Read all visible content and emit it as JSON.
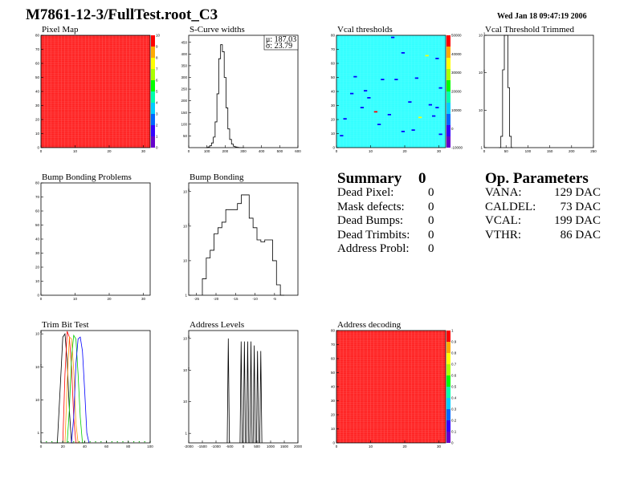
{
  "canvas_title": "M7861-12-3/FullTest.root_C3",
  "datestamp": "Wed Jan 18 09:47:19 2006",
  "summary": {
    "title": "Summary",
    "total": "0",
    "rows": [
      {
        "label": "Dead Pixel:",
        "value": "0"
      },
      {
        "label": "Mask defects:",
        "value": "0"
      },
      {
        "label": "Dead Bumps:",
        "value": "0"
      },
      {
        "label": "Dead Trimbits:",
        "value": "0"
      },
      {
        "label": "Address Probl:",
        "value": "0"
      }
    ]
  },
  "op_parameters": {
    "title": "Op. Parameters",
    "rows": [
      {
        "label": "VANA:",
        "value": "129 DAC"
      },
      {
        "label": "CALDEL:",
        "value": "73 DAC"
      },
      {
        "label": "VCAL:",
        "value": "199 DAC"
      },
      {
        "label": "VTHR:",
        "value": "86 DAC"
      }
    ]
  },
  "colors": {
    "map_fill": "#ff2020",
    "vcal_fill": "#33ffff",
    "palette": [
      "#6600cc",
      "#3300ff",
      "#0066ff",
      "#00ccff",
      "#00ffaa",
      "#00ff00",
      "#aaff00",
      "#ffff00",
      "#ffaa00",
      "#ff0000"
    ],
    "trim_lines": [
      "#000000",
      "#ff0000",
      "#ff9900",
      "#00cc00",
      "#0000ff"
    ]
  },
  "chart_data": [
    {
      "id": "pixel-map",
      "type": "heatmap",
      "title": "Pixel Map",
      "xlim": [
        0,
        32
      ],
      "ylim": [
        0,
        80
      ],
      "xticks": [
        0,
        10,
        20,
        30
      ],
      "yticks": [
        0,
        10,
        20,
        30,
        40,
        50,
        60,
        70,
        80
      ],
      "zticks": [
        0,
        1,
        2,
        3,
        4,
        5,
        6,
        7,
        8,
        9,
        10
      ],
      "fill_value": 10
    },
    {
      "id": "scurve-widths",
      "type": "histogram",
      "title": "S-Curve widths",
      "xlim": [
        0,
        600
      ],
      "ylim": [
        0,
        480
      ],
      "xticks": [
        0,
        100,
        200,
        300,
        400,
        500,
        600
      ],
      "yticks": [
        50,
        100,
        150,
        200,
        250,
        300,
        350,
        400,
        450
      ],
      "stats": {
        "mu_label": "μ:",
        "mu": "187.03",
        "sigma_label": "σ:",
        "sigma": "23.79"
      },
      "x": [
        100,
        110,
        120,
        130,
        140,
        150,
        160,
        170,
        180,
        190,
        200,
        210,
        220,
        230,
        240,
        250,
        260,
        270,
        280,
        290,
        300
      ],
      "values": [
        0,
        3,
        8,
        20,
        45,
        110,
        230,
        380,
        440,
        410,
        300,
        170,
        80,
        35,
        15,
        6,
        3,
        1,
        0,
        0,
        0
      ]
    },
    {
      "id": "vcal-thresholds",
      "type": "heatmap",
      "title": "Vcal thresholds",
      "xlim": [
        0,
        32
      ],
      "ylim": [
        0,
        80
      ],
      "xticks": [
        0,
        10,
        20,
        30
      ],
      "yticks": [
        0,
        10,
        20,
        30,
        40,
        50,
        60,
        70,
        80
      ],
      "zticks": [
        -10000,
        0,
        10000,
        20000,
        30000,
        40000,
        50000
      ],
      "outliers": [
        {
          "x": 17,
          "y": 48,
          "c": "#0000ff"
        },
        {
          "x": 16,
          "y": 78,
          "c": "#0000ff"
        },
        {
          "x": 29,
          "y": 63,
          "c": "#0000ff"
        },
        {
          "x": 26,
          "y": 65,
          "c": "#ffff00"
        },
        {
          "x": 5,
          "y": 50,
          "c": "#0000ff"
        },
        {
          "x": 9,
          "y": 35,
          "c": "#0000ff"
        },
        {
          "x": 13,
          "y": 48,
          "c": "#0000ff"
        },
        {
          "x": 22,
          "y": 12,
          "c": "#0000ff"
        },
        {
          "x": 23,
          "y": 49,
          "c": "#0000ff"
        },
        {
          "x": 4,
          "y": 38,
          "c": "#0000ff"
        },
        {
          "x": 7,
          "y": 28,
          "c": "#0000ff"
        },
        {
          "x": 2,
          "y": 20,
          "c": "#0000ff"
        },
        {
          "x": 15,
          "y": 23,
          "c": "#0000ff"
        },
        {
          "x": 11,
          "y": 25,
          "c": "#ff0000"
        },
        {
          "x": 19,
          "y": 11,
          "c": "#0000ff"
        },
        {
          "x": 28,
          "y": 22,
          "c": "#0000ff"
        },
        {
          "x": 29,
          "y": 28,
          "c": "#0000ff"
        },
        {
          "x": 30,
          "y": 42,
          "c": "#0000ff"
        },
        {
          "x": 8,
          "y": 40,
          "c": "#0000ff"
        },
        {
          "x": 30,
          "y": 9,
          "c": "#0000ff"
        },
        {
          "x": 21,
          "y": 32,
          "c": "#0000ff"
        },
        {
          "x": 24,
          "y": 21,
          "c": "#ffff00"
        },
        {
          "x": 1,
          "y": 8,
          "c": "#0000ff"
        },
        {
          "x": 19,
          "y": 67,
          "c": "#0000ff"
        },
        {
          "x": 12,
          "y": 16,
          "c": "#0000ff"
        },
        {
          "x": 27,
          "y": 30,
          "c": "#0000ff"
        }
      ]
    },
    {
      "id": "vcal-threshold-trimmed",
      "type": "histogram",
      "title": "Vcal Threshold Trimmed",
      "xlim": [
        0,
        250
      ],
      "log_y": true,
      "ylim_exp": [
        0,
        3
      ],
      "xticks": [
        0,
        50,
        100,
        150,
        200,
        250
      ],
      "yticks": [
        1,
        10,
        100,
        1000
      ],
      "x": [
        36,
        40,
        44,
        48,
        52,
        56,
        60,
        64
      ],
      "values": [
        1,
        2,
        120,
        1500,
        1200,
        40,
        2,
        1
      ]
    },
    {
      "id": "bump-bonding-problems",
      "type": "heatmap",
      "title": "Bump Bonding Problems",
      "xlim": [
        0,
        32
      ],
      "ylim": [
        0,
        80
      ],
      "xticks": [
        0,
        10,
        20,
        30
      ],
      "yticks": [
        0,
        10,
        20,
        30,
        40,
        50,
        60,
        70,
        80
      ]
    },
    {
      "id": "bump-bonding",
      "type": "histogram",
      "title": "Bump Bonding",
      "xlim": [
        -27,
        1
      ],
      "log_y": true,
      "ylim_exp": [
        0,
        3.25
      ],
      "xticks": [
        -25,
        -20,
        -15,
        -10,
        -5
      ],
      "yticks": [
        1,
        10,
        100,
        1000
      ],
      "x": [
        -23,
        -22,
        -21,
        -20,
        -19,
        -18,
        -17,
        -16,
        -15,
        -14,
        -13,
        -12,
        -11,
        -10,
        -9,
        -8,
        -7,
        -6,
        -5,
        -4,
        -3
      ],
      "values": [
        3,
        12,
        20,
        60,
        90,
        130,
        300,
        300,
        300,
        450,
        800,
        800,
        170,
        90,
        40,
        35,
        40,
        40,
        10,
        2,
        1
      ]
    },
    {
      "id": "trim-bit-test",
      "type": "line",
      "title": "Trim Bit Test",
      "xlim": [
        0,
        100
      ],
      "log_y": true,
      "ylim_exp": [
        -0.3,
        3.1
      ],
      "xticks": [
        0,
        20,
        40,
        60,
        80,
        100
      ],
      "yticks": [
        1,
        10,
        100,
        1000
      ],
      "series": [
        {
          "x": [
            10,
            15,
            18,
            20,
            22,
            24,
            26,
            28,
            30
          ],
          "values": [
            0.5,
            0.5,
            40,
            800,
            1000,
            150,
            5,
            0.5,
            0.5
          ]
        },
        {
          "x": [
            20,
            22,
            24,
            26,
            28,
            30,
            32,
            34
          ],
          "values": [
            0.5,
            60,
            1200,
            800,
            100,
            3,
            0.5,
            0.5
          ]
        },
        {
          "x": [
            22,
            24,
            26,
            28,
            30,
            32,
            34,
            36
          ],
          "values": [
            0.5,
            30,
            800,
            700,
            80,
            2,
            0.5,
            0.5
          ]
        },
        {
          "x": [
            24,
            26,
            28,
            30,
            32,
            34,
            36,
            38,
            40
          ],
          "values": [
            0.5,
            5,
            200,
            900,
            700,
            60,
            3,
            0.5,
            0.5
          ]
        },
        {
          "x": [
            28,
            30,
            32,
            34,
            36,
            38,
            40,
            42,
            44
          ],
          "values": [
            0.5,
            3,
            120,
            700,
            800,
            300,
            20,
            1,
            0.5
          ]
        }
      ],
      "baseline_points": [
        0,
        5,
        10,
        15,
        20,
        25,
        30,
        35,
        40,
        45,
        50,
        55,
        60,
        65,
        70,
        75,
        80,
        85,
        90,
        95,
        100
      ]
    },
    {
      "id": "address-levels",
      "type": "line",
      "title": "Address Levels",
      "xlim": [
        -2000,
        2000
      ],
      "log_y": true,
      "ylim_exp": [
        -0.3,
        3.25
      ],
      "xticks": [
        -2000,
        -1500,
        -1000,
        -500,
        0,
        500,
        1000,
        1500,
        2000
      ],
      "yticks": [
        1,
        10,
        100,
        1000
      ],
      "peaks": [
        {
          "x": -550,
          "v": 1000
        },
        {
          "x": -80,
          "v": 800
        },
        {
          "x": 40,
          "v": 800
        },
        {
          "x": 160,
          "v": 800
        },
        {
          "x": 280,
          "v": 800
        },
        {
          "x": 400,
          "v": 600
        },
        {
          "x": 520,
          "v": 400
        },
        {
          "x": 640,
          "v": 400
        }
      ]
    },
    {
      "id": "address-decoding",
      "type": "heatmap",
      "title": "Address decoding",
      "xlim": [
        0,
        32
      ],
      "ylim": [
        0,
        80
      ],
      "xticks": [
        0,
        10,
        20,
        30
      ],
      "yticks": [
        0,
        10,
        20,
        30,
        40,
        50,
        60,
        70,
        80
      ],
      "zticks": [
        0,
        0.1,
        0.2,
        0.3,
        0.4,
        0.5,
        0.6,
        0.7,
        0.8,
        0.9,
        1
      ],
      "fill_value": 1
    }
  ]
}
